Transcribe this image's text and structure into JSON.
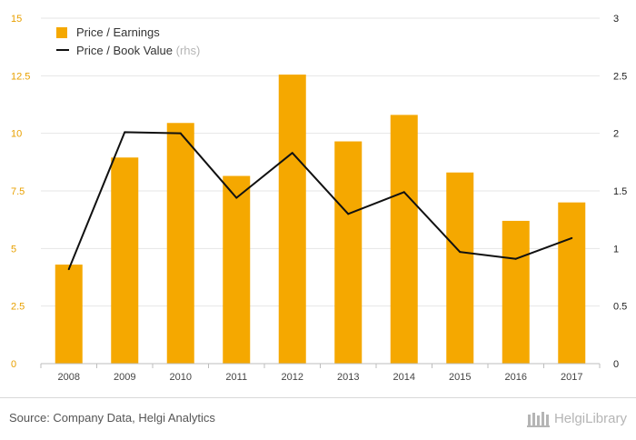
{
  "chart_data": {
    "type": "bar",
    "categories": [
      "2008",
      "2009",
      "2010",
      "2011",
      "2012",
      "2013",
      "2014",
      "2015",
      "2016",
      "2017"
    ],
    "series": [
      {
        "name": "Price / Earnings",
        "type": "bar",
        "axis": "left",
        "color": "#f5a800",
        "values": [
          4.3,
          8.95,
          10.45,
          8.15,
          12.55,
          9.65,
          10.8,
          8.3,
          6.2,
          7.0
        ]
      },
      {
        "name": "Price / Book Value",
        "type": "line",
        "axis": "right",
        "color": "#111111",
        "values": [
          0.82,
          2.01,
          2.0,
          1.44,
          1.83,
          1.3,
          1.49,
          0.97,
          0.91,
          1.09
        ]
      }
    ],
    "legend_suffix": "(rhs)",
    "ylim_left": [
      0,
      15
    ],
    "yticks_left": [
      "0",
      "2.5",
      "5",
      "7.5",
      "10",
      "12.5",
      "15"
    ],
    "ylim_right": [
      0,
      3
    ],
    "yticks_right": [
      "0",
      "0.5",
      "1",
      "1.5",
      "2",
      "2.5",
      "3"
    ],
    "grid": "horizontal",
    "legend_position": "top-left"
  },
  "footer": {
    "source": "Source: Company Data, Helgi Analytics",
    "logo_text": "HelgiLibrary"
  }
}
